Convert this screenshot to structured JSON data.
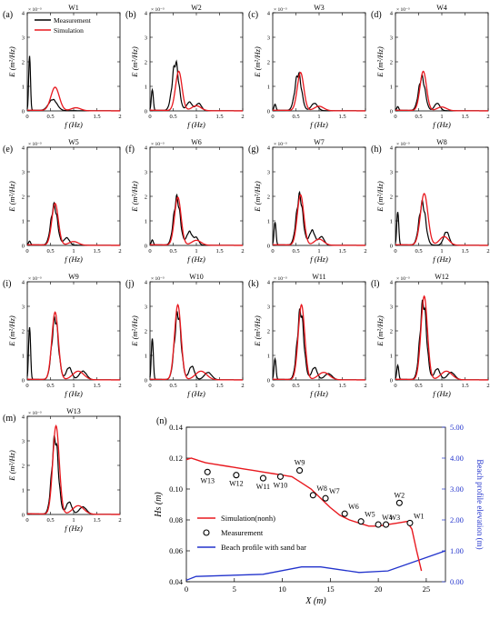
{
  "colors": {
    "measurement": "#000000",
    "simulation": "#e8191f",
    "profile": "#2233cc",
    "right_axis": "#2233cc",
    "frame": "#000000"
  },
  "spectra": {
    "xlabel": "f (Hz)",
    "ylabel": "E (m²/Hz)",
    "multiplier": "× 10⁻³",
    "xticks": [
      "0",
      "0.5",
      "1",
      "1.5",
      "2"
    ],
    "yticks": [
      "0",
      "1",
      "2",
      "3",
      "4"
    ],
    "xlim": [
      0,
      2
    ],
    "ylim": [
      0,
      4
    ],
    "legend": [
      "Measurement",
      "Simulation"
    ]
  },
  "chart_data": [
    {
      "panel": "(a)",
      "title": "W1",
      "type": "line",
      "series": [
        {
          "name": "Measurement",
          "peaks": [
            [
              0.05,
              2.4,
              0.018
            ],
            [
              0.55,
              0.45,
              0.09
            ]
          ]
        },
        {
          "name": "Simulation",
          "peaks": [
            [
              0.6,
              0.95,
              0.09
            ],
            [
              1.05,
              0.12,
              0.1
            ]
          ]
        }
      ],
      "xlim": [
        0,
        2
      ],
      "ylim": [
        0,
        4
      ]
    },
    {
      "panel": "(b)",
      "title": "W2",
      "type": "line",
      "series": [
        {
          "name": "Measurement",
          "peaks": [
            [
              0.05,
              0.9,
              0.02
            ],
            [
              0.55,
              1.95,
              0.07
            ],
            [
              0.85,
              0.35,
              0.06
            ],
            [
              1.05,
              0.3,
              0.06
            ]
          ]
        },
        {
          "name": "Simulation",
          "peaks": [
            [
              0.62,
              1.6,
              0.07
            ],
            [
              1.0,
              0.2,
              0.1
            ]
          ]
        }
      ],
      "xlim": [
        0,
        2
      ],
      "ylim": [
        0,
        4
      ]
    },
    {
      "panel": "(c)",
      "title": "W3",
      "type": "line",
      "series": [
        {
          "name": "Measurement",
          "peaks": [
            [
              0.05,
              0.25,
              0.02
            ],
            [
              0.55,
              1.5,
              0.07
            ],
            [
              0.9,
              0.3,
              0.07
            ]
          ]
        },
        {
          "name": "Simulation",
          "peaks": [
            [
              0.6,
              1.55,
              0.07
            ],
            [
              1.0,
              0.18,
              0.1
            ]
          ]
        }
      ],
      "xlim": [
        0,
        2
      ],
      "ylim": [
        0,
        4
      ]
    },
    {
      "panel": "(d)",
      "title": "W4",
      "type": "line",
      "series": [
        {
          "name": "Measurement",
          "peaks": [
            [
              0.05,
              0.15,
              0.02
            ],
            [
              0.57,
              1.35,
              0.07
            ],
            [
              0.9,
              0.3,
              0.06
            ]
          ]
        },
        {
          "name": "Simulation",
          "peaks": [
            [
              0.6,
              1.6,
              0.07
            ],
            [
              1.0,
              0.15,
              0.1
            ]
          ]
        }
      ],
      "xlim": [
        0,
        2
      ],
      "ylim": [
        0,
        4
      ]
    },
    {
      "panel": "(e)",
      "title": "W5",
      "type": "line",
      "series": [
        {
          "name": "Measurement",
          "peaks": [
            [
              0.05,
              0.15,
              0.02
            ],
            [
              0.58,
              1.6,
              0.07
            ],
            [
              0.85,
              0.3,
              0.06
            ]
          ]
        },
        {
          "name": "Simulation",
          "peaks": [
            [
              0.6,
              1.7,
              0.07
            ],
            [
              1.0,
              0.15,
              0.1
            ]
          ]
        }
      ],
      "xlim": [
        0,
        2
      ],
      "ylim": [
        0,
        4
      ]
    },
    {
      "panel": "(f)",
      "title": "W6",
      "type": "line",
      "series": [
        {
          "name": "Measurement",
          "peaks": [
            [
              0.05,
              0.2,
              0.02
            ],
            [
              0.58,
              1.9,
              0.07
            ],
            [
              0.85,
              0.55,
              0.06
            ],
            [
              1.0,
              0.3,
              0.05
            ]
          ]
        },
        {
          "name": "Simulation",
          "peaks": [
            [
              0.6,
              1.95,
              0.07
            ],
            [
              1.0,
              0.2,
              0.1
            ]
          ]
        }
      ],
      "xlim": [
        0,
        2
      ],
      "ylim": [
        0,
        4
      ]
    },
    {
      "panel": "(g)",
      "title": "W7",
      "type": "line",
      "series": [
        {
          "name": "Measurement",
          "peaks": [
            [
              0.05,
              1.0,
              0.02
            ],
            [
              0.58,
              2.0,
              0.07
            ],
            [
              0.85,
              0.6,
              0.06
            ],
            [
              1.05,
              0.35,
              0.06
            ]
          ]
        },
        {
          "name": "Simulation",
          "peaks": [
            [
              0.6,
              2.05,
              0.07
            ],
            [
              1.0,
              0.25,
              0.1
            ]
          ]
        }
      ],
      "xlim": [
        0,
        2
      ],
      "ylim": [
        0,
        4
      ]
    },
    {
      "panel": "(h)",
      "title": "W8",
      "type": "line",
      "series": [
        {
          "name": "Measurement",
          "peaks": [
            [
              0.05,
              1.45,
              0.02
            ],
            [
              0.58,
              1.7,
              0.07
            ],
            [
              1.1,
              0.55,
              0.06
            ]
          ]
        },
        {
          "name": "Simulation",
          "peaks": [
            [
              0.62,
              2.1,
              0.08
            ],
            [
              1.05,
              0.35,
              0.1
            ]
          ]
        }
      ],
      "xlim": [
        0,
        2
      ],
      "ylim": [
        0,
        4
      ]
    },
    {
      "panel": "(i)",
      "title": "W9",
      "type": "line",
      "series": [
        {
          "name": "Measurement",
          "peaks": [
            [
              0.05,
              2.3,
              0.02
            ],
            [
              0.6,
              2.5,
              0.07
            ],
            [
              0.9,
              0.5,
              0.06
            ],
            [
              1.2,
              0.35,
              0.08
            ]
          ]
        },
        {
          "name": "Simulation",
          "peaks": [
            [
              0.6,
              2.75,
              0.07
            ],
            [
              1.1,
              0.35,
              0.12
            ]
          ]
        }
      ],
      "xlim": [
        0,
        2
      ],
      "ylim": [
        0,
        4
      ]
    },
    {
      "panel": "(j)",
      "title": "W10",
      "type": "line",
      "series": [
        {
          "name": "Measurement",
          "peaks": [
            [
              0.05,
              1.8,
              0.02
            ],
            [
              0.6,
              2.7,
              0.07
            ],
            [
              0.9,
              0.55,
              0.06
            ],
            [
              1.25,
              0.3,
              0.08
            ]
          ]
        },
        {
          "name": "Simulation",
          "peaks": [
            [
              0.6,
              3.05,
              0.07
            ],
            [
              1.1,
              0.35,
              0.12
            ]
          ]
        }
      ],
      "xlim": [
        0,
        2
      ],
      "ylim": [
        0,
        4
      ]
    },
    {
      "panel": "(k)",
      "title": "W11",
      "type": "line",
      "series": [
        {
          "name": "Measurement",
          "peaks": [
            [
              0.05,
              0.9,
              0.02
            ],
            [
              0.6,
              2.8,
              0.07
            ],
            [
              0.9,
              0.5,
              0.06
            ],
            [
              1.2,
              0.25,
              0.08
            ]
          ]
        },
        {
          "name": "Simulation",
          "peaks": [
            [
              0.62,
              3.05,
              0.07
            ],
            [
              1.1,
              0.3,
              0.12
            ]
          ]
        }
      ],
      "xlim": [
        0,
        2
      ],
      "ylim": [
        0,
        4
      ]
    },
    {
      "panel": "(l)",
      "title": "W12",
      "type": "line",
      "series": [
        {
          "name": "Measurement",
          "peaks": [
            [
              0.05,
              0.6,
              0.02
            ],
            [
              0.6,
              3.15,
              0.07
            ],
            [
              0.9,
              0.45,
              0.06
            ],
            [
              1.2,
              0.3,
              0.08
            ]
          ]
        },
        {
          "name": "Simulation",
          "peaks": [
            [
              0.62,
              3.4,
              0.07
            ],
            [
              1.1,
              0.35,
              0.12
            ]
          ]
        }
      ],
      "xlim": [
        0,
        2
      ],
      "ylim": [
        0,
        4
      ]
    },
    {
      "panel": "(m)",
      "title": "W13",
      "type": "line",
      "series": [
        {
          "name": "Measurement",
          "peaks": [
            [
              0.6,
              3.1,
              0.07
            ],
            [
              0.9,
              0.5,
              0.06
            ],
            [
              1.2,
              0.3,
              0.08
            ]
          ]
        },
        {
          "name": "Simulation",
          "peaks": [
            [
              0.62,
              3.6,
              0.07
            ],
            [
              1.1,
              0.35,
              0.12
            ]
          ]
        }
      ],
      "xlim": [
        0,
        2
      ],
      "ylim": [
        0,
        4
      ]
    },
    {
      "panel": "(n)",
      "type": "line",
      "xlabel": "X (m)",
      "ylabel": "Hs (m)",
      "y2label": "Beach profile elevation (m)",
      "xlim": [
        0,
        27
      ],
      "ylim": [
        0.04,
        0.14
      ],
      "y2lim": [
        0,
        5
      ],
      "xticks": [
        "0",
        "5",
        "10",
        "15",
        "20",
        "25"
      ],
      "yticks": [
        "0.04",
        "0.06",
        "0.08",
        "0.10",
        "0.12",
        "0.14"
      ],
      "y2ticks": [
        "0.00",
        "1.00",
        "2.00",
        "3.00",
        "4.00",
        "5.00"
      ],
      "legend": [
        "Simulation(nonh)",
        "Measurement",
        "Beach profile with sand bar"
      ],
      "simulation": {
        "x": [
          0,
          0.5,
          1,
          1.5,
          2,
          3,
          4,
          5,
          6,
          7,
          8,
          9,
          10,
          11,
          11.5,
          12,
          13,
          14,
          15,
          16,
          17,
          18,
          19,
          20,
          21,
          22,
          23,
          23.5,
          24,
          24.5
        ],
        "y": [
          0.119,
          0.12,
          0.119,
          0.118,
          0.117,
          0.116,
          0.115,
          0.114,
          0.113,
          0.112,
          0.111,
          0.11,
          0.109,
          0.108,
          0.106,
          0.104,
          0.1,
          0.094,
          0.088,
          0.083,
          0.08,
          0.078,
          0.076,
          0.076,
          0.077,
          0.078,
          0.079,
          0.074,
          0.06,
          0.047
        ]
      },
      "measurement": {
        "x": [
          23.3,
          22.2,
          20.8,
          20.0,
          18.2,
          16.5,
          14.5,
          13.2,
          11.8,
          9.8,
          8.0,
          5.2,
          2.2
        ],
        "y": [
          0.078,
          0.091,
          0.077,
          0.077,
          0.079,
          0.084,
          0.094,
          0.096,
          0.112,
          0.108,
          0.107,
          0.109,
          0.111
        ],
        "labels": [
          "W1",
          "W2",
          "W3",
          "W4",
          "W5",
          "W6",
          "W7",
          "W8",
          "W9",
          "W10",
          "W11",
          "W12",
          "W13"
        ]
      },
      "profile": {
        "x": [
          0,
          1,
          8,
          12,
          14,
          18,
          21,
          27
        ],
        "y": [
          0.05,
          0.17,
          0.24,
          0.48,
          0.48,
          0.3,
          0.35,
          1.0
        ]
      }
    }
  ]
}
